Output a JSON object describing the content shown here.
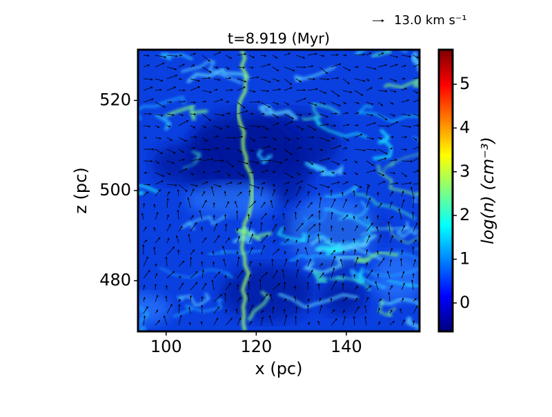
{
  "chart_data": {
    "type": "heatmap",
    "title": "t=8.919 (Myr)",
    "xlabel": "x (pc)",
    "ylabel": "z (pc)",
    "xlim": [
      93.75,
      156.25
    ],
    "xticks": [
      100,
      120,
      140
    ],
    "ylim": [
      468.75,
      531.25
    ],
    "yticks": [
      480,
      500,
      520
    ],
    "colorbar": {
      "label": "log(n) (cm⁻³)",
      "lim": [
        -0.65,
        5.79
      ],
      "ticks": [
        0,
        1,
        2,
        3,
        4,
        5
      ],
      "colormap": "jet"
    },
    "quiver_key": "13.0 km s⁻¹"
  }
}
